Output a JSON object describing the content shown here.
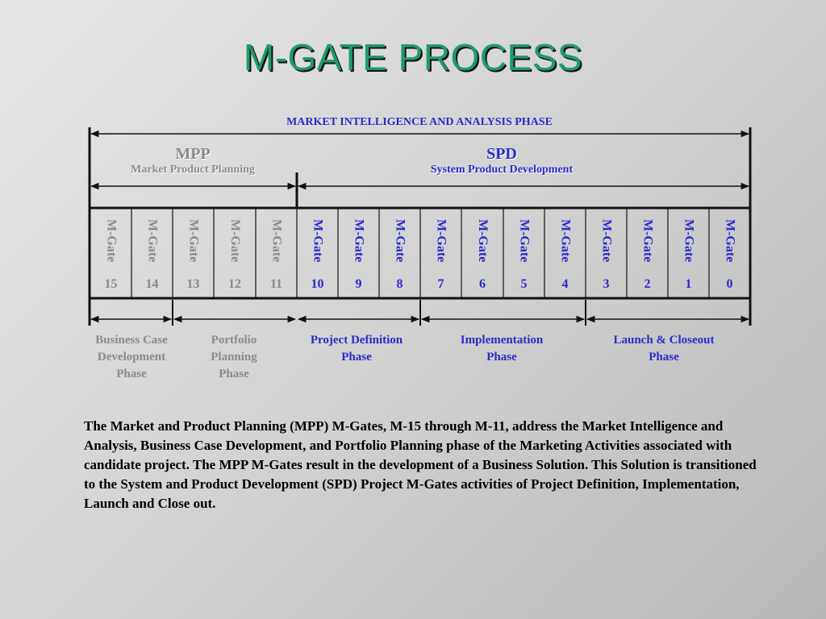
{
  "title": "M-GATE PROCESS",
  "top_phase": "MARKET INTELLIGENCE AND ANALYSIS PHASE",
  "groups": {
    "mpp": {
      "abbr": "MPP",
      "full": "Market Product Planning"
    },
    "spd": {
      "abbr": "SPD",
      "full": "System Product Development"
    }
  },
  "gates": [
    {
      "word": "M-Gate",
      "number": "15"
    },
    {
      "word": "M-Gate",
      "number": "14"
    },
    {
      "word": "M-Gate",
      "number": "13"
    },
    {
      "word": "M-Gate",
      "number": "12"
    },
    {
      "word": "M-Gate",
      "number": "11"
    },
    {
      "word": "M-Gate",
      "number": "10"
    },
    {
      "word": "M-Gate",
      "number": "9"
    },
    {
      "word": "M-Gate",
      "number": "8"
    },
    {
      "word": "M-Gate",
      "number": "7"
    },
    {
      "word": "M-Gate",
      "number": "6"
    },
    {
      "word": "M-Gate",
      "number": "5"
    },
    {
      "word": "M-Gate",
      "number": "4"
    },
    {
      "word": "M-Gate",
      "number": "3"
    },
    {
      "word": "M-Gate",
      "number": "2"
    },
    {
      "word": "M-Gate",
      "number": "1"
    },
    {
      "word": "M-Gate",
      "number": "0"
    }
  ],
  "sub_phases": [
    {
      "lines": [
        "Business Case",
        "Development",
        "Phase"
      ]
    },
    {
      "lines": [
        "Portfolio",
        "Planning",
        "Phase"
      ]
    },
    {
      "lines": [
        "Project Definition",
        "Phase"
      ]
    },
    {
      "lines": [
        "Implementation",
        "Phase"
      ]
    },
    {
      "lines": [
        "Launch & Closeout",
        "Phase"
      ]
    }
  ],
  "description": "The Market and Product Planning (MPP) M-Gates, M-15 through M-11, address the Market Intelligence and Analysis, Business Case Development, and Portfolio Planning phase of the Marketing Activities associated with candidate project.  The MPP M-Gates result in the development of a Business Solution.  This Solution is transitioned to the System and Product Development (SPD) Project M-Gates activities of Project Definition, Implementation, Launch and Close out.",
  "colors": {
    "title": "#1f9a6a",
    "mpp": "#8a8a8a",
    "spd": "#2a2acc",
    "lines": "#111111"
  }
}
